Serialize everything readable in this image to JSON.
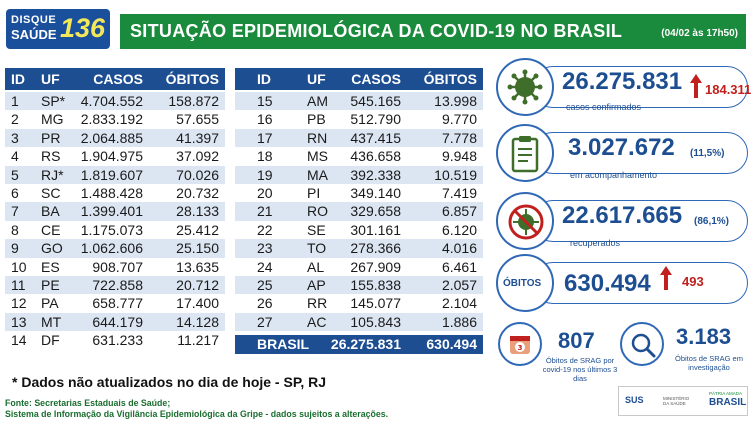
{
  "header": {
    "logo_line1": "DISQUE",
    "logo_line2": "SAÚDE",
    "logo_number": "136",
    "title": "SITUAÇÃO EPIDEMIOLÓGICA DA COVID-19 NO BRASIL",
    "date": "(04/02 às 17h50)"
  },
  "table": {
    "columns": [
      "ID",
      "UF",
      "CASOS",
      "ÓBITOS"
    ],
    "left_rows": [
      {
        "id": "1",
        "uf": "SP*",
        "casos": "4.704.552",
        "obitos": "158.872"
      },
      {
        "id": "2",
        "uf": "MG",
        "casos": "2.833.192",
        "obitos": "57.655"
      },
      {
        "id": "3",
        "uf": "PR",
        "casos": "2.064.885",
        "obitos": "41.397"
      },
      {
        "id": "4",
        "uf": "RS",
        "casos": "1.904.975",
        "obitos": "37.092"
      },
      {
        "id": "5",
        "uf": "RJ*",
        "casos": "1.819.607",
        "obitos": "70.026"
      },
      {
        "id": "6",
        "uf": "SC",
        "casos": "1.488.428",
        "obitos": "20.732"
      },
      {
        "id": "7",
        "uf": "BA",
        "casos": "1.399.401",
        "obitos": "28.133"
      },
      {
        "id": "8",
        "uf": "CE",
        "casos": "1.175.073",
        "obitos": "25.412"
      },
      {
        "id": "9",
        "uf": "GO",
        "casos": "1.062.606",
        "obitos": "25.150"
      },
      {
        "id": "10",
        "uf": "ES",
        "casos": "908.707",
        "obitos": "13.635"
      },
      {
        "id": "11",
        "uf": "PE",
        "casos": "722.858",
        "obitos": "20.712"
      },
      {
        "id": "12",
        "uf": "PA",
        "casos": "658.777",
        "obitos": "17.400"
      },
      {
        "id": "13",
        "uf": "MT",
        "casos": "644.179",
        "obitos": "14.128"
      },
      {
        "id": "14",
        "uf": "DF",
        "casos": "631.233",
        "obitos": "11.217"
      }
    ],
    "right_rows": [
      {
        "id": "15",
        "uf": "AM",
        "casos": "545.165",
        "obitos": "13.998"
      },
      {
        "id": "16",
        "uf": "PB",
        "casos": "512.790",
        "obitos": "9.770"
      },
      {
        "id": "17",
        "uf": "RN",
        "casos": "437.415",
        "obitos": "7.778"
      },
      {
        "id": "18",
        "uf": "MS",
        "casos": "436.658",
        "obitos": "9.948"
      },
      {
        "id": "19",
        "uf": "MA",
        "casos": "392.338",
        "obitos": "10.519"
      },
      {
        "id": "20",
        "uf": "PI",
        "casos": "349.140",
        "obitos": "7.419"
      },
      {
        "id": "21",
        "uf": "RO",
        "casos": "329.658",
        "obitos": "6.857"
      },
      {
        "id": "22",
        "uf": "SE",
        "casos": "301.161",
        "obitos": "6.120"
      },
      {
        "id": "23",
        "uf": "TO",
        "casos": "278.366",
        "obitos": "4.016"
      },
      {
        "id": "24",
        "uf": "AL",
        "casos": "267.909",
        "obitos": "6.461"
      },
      {
        "id": "25",
        "uf": "AP",
        "casos": "155.838",
        "obitos": "2.057"
      },
      {
        "id": "26",
        "uf": "RR",
        "casos": "145.077",
        "obitos": "2.104"
      },
      {
        "id": "27",
        "uf": "AC",
        "casos": "105.843",
        "obitos": "1.886"
      }
    ],
    "total": {
      "label": "BRASIL",
      "casos": "26.275.831",
      "obitos": "630.494"
    }
  },
  "footnote": "* Dados não atualizados no dia de hoje - SP, RJ",
  "source": {
    "line1": "Fonte: Secretarias Estaduais de Saúde;",
    "line2": "Sistema de Informação da Vigilância Epidemiológica da Gripe - dados sujeitos a alterações."
  },
  "stats": {
    "confirmed": {
      "value": "26.275.831",
      "label": "casos confirmados",
      "delta": "184.311",
      "icon": "virus-icon"
    },
    "monitoring": {
      "value": "3.027.672",
      "label": "em acompanhamento",
      "pct": "(11,5%)",
      "icon": "clipboard-icon"
    },
    "recovered": {
      "value": "22.617.665",
      "label": "recuperados",
      "pct": "(86,1%)",
      "icon": "virus-crossed-icon"
    },
    "deaths": {
      "word": "ÓBITOS",
      "value": "630.494",
      "delta": "493"
    }
  },
  "srag": {
    "confirmed": {
      "value": "807",
      "label": "Óbitos de SRAG por covid-19 nos últimos 3 dias",
      "icon_text": "3"
    },
    "investigation": {
      "value": "3.183",
      "label": "Óbitos de SRAG em investigação",
      "icon": "magnifier-icon"
    }
  },
  "footer": {
    "sus": "SUS",
    "ministry": "MINISTÉRIO DA SAÚDE",
    "gov_top": "PÁTRIA AMADA",
    "gov_main": "BRASIL"
  },
  "colors": {
    "title_green": "#1a8a3c",
    "table_blue": "#1d4e91",
    "row_alt": "#dce6f3",
    "delta_red": "#c0201e",
    "virus_green": "#3f6d2a"
  }
}
